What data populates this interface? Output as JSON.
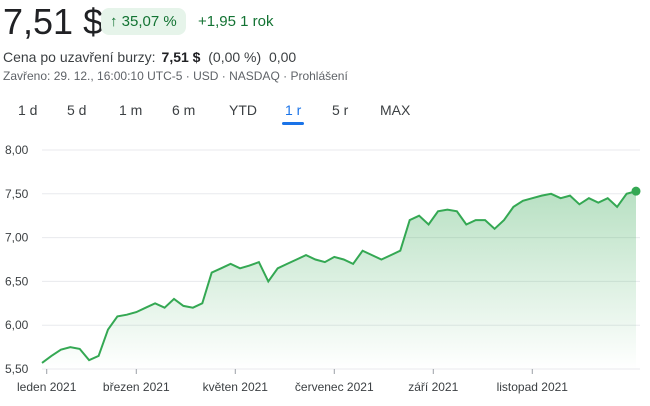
{
  "quote": {
    "price": "7,51 $",
    "change_pct": "↑ 35,07 %",
    "change_abs": "+1,95 1 rok",
    "after_label": "Cena po uzavření burzy:",
    "after_price": "7,51 $",
    "after_pct": "(0,00 %)",
    "after_abs": "0,00",
    "closed_info": "Zavřeno: 29. 12., 16:00:10 UTC-5 · USD · NASDAQ · Prohlášení"
  },
  "tabs": [
    {
      "label": "1 d"
    },
    {
      "label": "5 d"
    },
    {
      "label": "1 m"
    },
    {
      "label": "6 m"
    },
    {
      "label": "YTD"
    },
    {
      "label": "1 r",
      "active": true
    },
    {
      "label": "5 r"
    },
    {
      "label": "MAX"
    }
  ],
  "colors": {
    "line": "#34a853",
    "gain": "#137333",
    "accent": "#1a73e8"
  },
  "chart_data": {
    "type": "area",
    "ylim": [
      5.5,
      8.0
    ],
    "yticks": [
      "8,00",
      "7,50",
      "7,00",
      "6,50",
      "6,00",
      "5,50"
    ],
    "ytick_values": [
      8.0,
      7.5,
      7.0,
      6.5,
      6.0,
      5.5
    ],
    "xticks": [
      {
        "label": "leden 2021",
        "index": 0.5
      },
      {
        "label": "březen 2021",
        "index": 10
      },
      {
        "label": "květen 2021",
        "index": 20.5
      },
      {
        "label": "červenec 2021",
        "index": 31
      },
      {
        "label": "září 2021",
        "index": 41.5
      },
      {
        "label": "listopad 2021",
        "index": 52
      }
    ],
    "values": [
      5.57,
      5.65,
      5.72,
      5.75,
      5.73,
      5.6,
      5.65,
      5.95,
      6.1,
      6.12,
      6.15,
      6.2,
      6.25,
      6.2,
      6.3,
      6.22,
      6.2,
      6.25,
      6.6,
      6.65,
      6.7,
      6.65,
      6.68,
      6.72,
      6.5,
      6.65,
      6.7,
      6.75,
      6.8,
      6.75,
      6.72,
      6.78,
      6.75,
      6.7,
      6.85,
      6.8,
      6.75,
      6.8,
      6.85,
      7.2,
      7.25,
      7.15,
      7.3,
      7.32,
      7.3,
      7.15,
      7.2,
      7.2,
      7.1,
      7.2,
      7.35,
      7.42,
      7.45,
      7.48,
      7.5,
      7.45,
      7.48,
      7.38,
      7.45,
      7.4,
      7.45,
      7.35,
      7.5,
      7.53
    ]
  }
}
